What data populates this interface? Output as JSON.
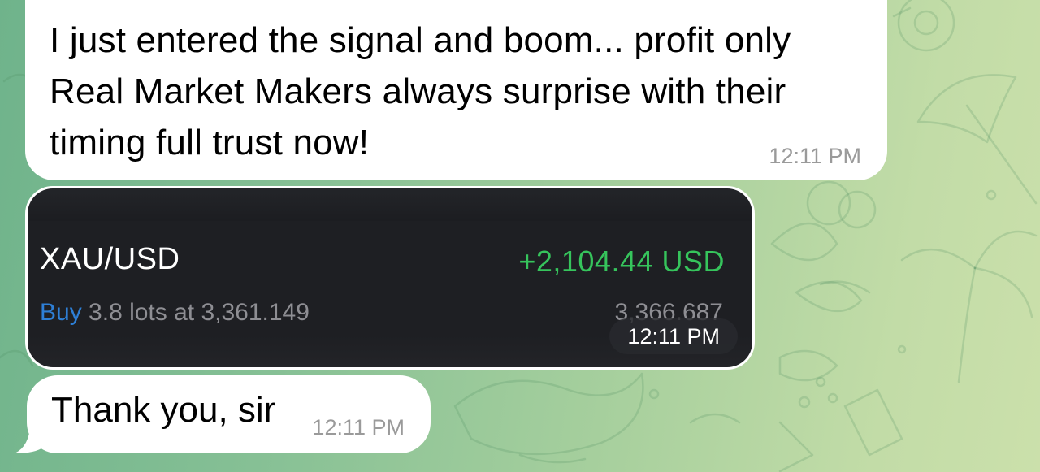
{
  "messages": [
    {
      "text": "I just entered the signal and boom... profit only\nReal Market Makers always surprise with their\ntiming full trust now!",
      "time": "12:11 PM"
    },
    {
      "trade": {
        "symbol": "XAU/USD",
        "profit": "+2,104.44 USD",
        "side": "Buy",
        "details": "3.8 lots at 3,361.149",
        "current_price": "3,366.687"
      },
      "time": "12:11 PM"
    },
    {
      "text": "Thank you, sir",
      "time": "12:11 PM"
    }
  ],
  "colors": {
    "bubble": "#ffffff",
    "timestamp": "#9a9a9a",
    "card_background": "#1c1d21",
    "profit_green": "#36c45c",
    "buy_blue": "#2e7fd6"
  },
  "icons": [
    "billiard-ball-icon",
    "umbrella-icon",
    "palm-tree-icon",
    "fish-icon",
    "leaf-icon",
    "whale-icon"
  ]
}
